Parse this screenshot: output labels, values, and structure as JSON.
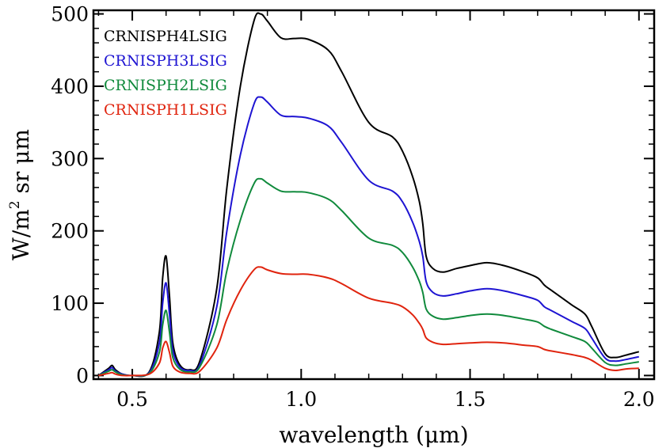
{
  "chart_data": {
    "type": "line",
    "title": "",
    "xlabel": "wavelength (μm)",
    "ylabel": "W/m² sr μm",
    "ylabel_parts": {
      "pre": "W/m",
      "sup": "2",
      "post": " sr μm"
    },
    "xlim": [
      0.385,
      2.045
    ],
    "ylim": [
      -5,
      505
    ],
    "xticks": [
      0.5,
      1.0,
      1.5,
      2.0
    ],
    "xtick_labels": [
      "0.5",
      "1.0",
      "1.5",
      "2.0"
    ],
    "yticks": [
      0,
      100,
      200,
      300,
      400,
      500
    ],
    "ytick_labels": [
      "0",
      "100",
      "200",
      "300",
      "400",
      "500"
    ],
    "grid": false,
    "legend_position": "top-left",
    "x": [
      0.4,
      0.43,
      0.44,
      0.45,
      0.47,
      0.5,
      0.55,
      0.58,
      0.59,
      0.6,
      0.61,
      0.62,
      0.64,
      0.67,
      0.7,
      0.75,
      0.78,
      0.82,
      0.86,
      0.88,
      0.9,
      0.94,
      0.98,
      1.02,
      1.08,
      1.12,
      1.2,
      1.27,
      1.3,
      1.33,
      1.35,
      1.36,
      1.37,
      1.39,
      1.42,
      1.46,
      1.5,
      1.55,
      1.6,
      1.66,
      1.7,
      1.72,
      1.74,
      1.8,
      1.84,
      1.86,
      1.9,
      1.93,
      1.96,
      2.0
    ],
    "series": [
      {
        "name": "CRNISPH4LSIG",
        "color": "#000000",
        "values": [
          0,
          10,
          14,
          8,
          2,
          0,
          5,
          60,
          135,
          165,
          110,
          45,
          15,
          8,
          20,
          120,
          260,
          400,
          490,
          500,
          490,
          467,
          466,
          465,
          450,
          420,
          350,
          330,
          310,
          275,
          240,
          210,
          165,
          148,
          143,
          148,
          152,
          156,
          152,
          143,
          135,
          125,
          118,
          98,
          85,
          68,
          30,
          25,
          28,
          33
        ]
      },
      {
        "name": "CRNISPH3LSIG",
        "color": "#1e14d2",
        "values": [
          0,
          8,
          11,
          6,
          2,
          0,
          4,
          45,
          100,
          128,
          85,
          35,
          12,
          7,
          15,
          95,
          200,
          305,
          375,
          385,
          378,
          360,
          358,
          356,
          345,
          322,
          270,
          255,
          240,
          212,
          185,
          165,
          130,
          115,
          110,
          113,
          117,
          120,
          117,
          110,
          104,
          95,
          90,
          75,
          65,
          52,
          24,
          20,
          22,
          26
        ]
      },
      {
        "name": "CRNISPH2LSIG",
        "color": "#108a3c",
        "values": [
          0,
          6,
          8,
          5,
          1,
          0,
          3,
          32,
          70,
          90,
          60,
          25,
          9,
          5,
          12,
          70,
          145,
          215,
          265,
          272,
          266,
          255,
          254,
          253,
          244,
          228,
          190,
          180,
          170,
          150,
          130,
          115,
          92,
          82,
          78,
          80,
          83,
          85,
          83,
          78,
          74,
          68,
          64,
          54,
          47,
          38,
          18,
          14,
          16,
          19
        ]
      },
      {
        "name": "CRNISPH1LSIG",
        "color": "#e0240e",
        "values": [
          0,
          3,
          4,
          2,
          0,
          0,
          2,
          17,
          38,
          47,
          32,
          13,
          5,
          3,
          6,
          38,
          78,
          118,
          146,
          150,
          146,
          141,
          140,
          140,
          135,
          127,
          107,
          100,
          95,
          84,
          72,
          64,
          52,
          46,
          43,
          44,
          45,
          46,
          45,
          42,
          40,
          36,
          34,
          29,
          25,
          21,
          10,
          7,
          9,
          10
        ]
      }
    ]
  }
}
